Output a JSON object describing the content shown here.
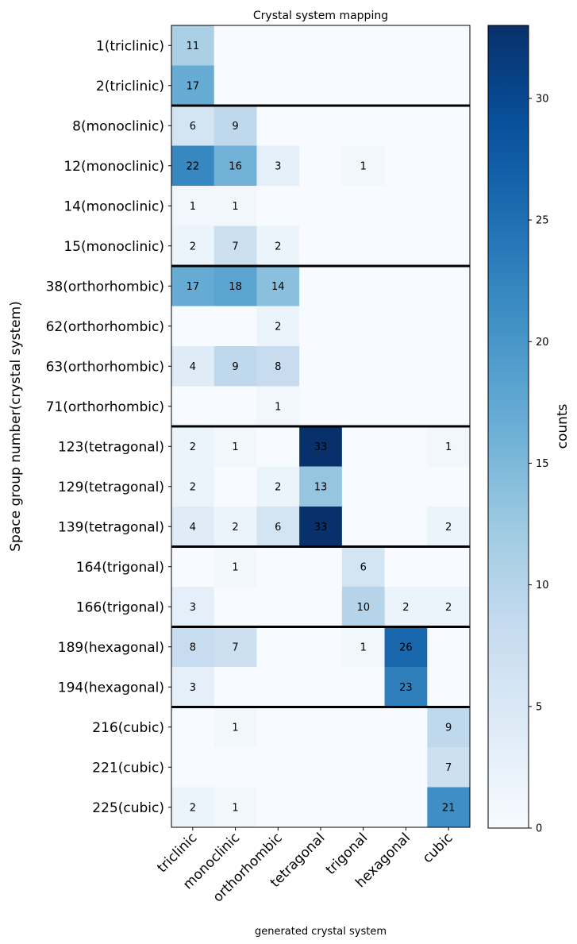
{
  "chart_data": {
    "type": "heatmap",
    "title": "Crystal system mapping",
    "xlabel": "generated crystal system",
    "ylabel": "Space group number(crystal system)",
    "colorbar_label": "counts",
    "colormap": "Blues",
    "vmin": 0,
    "vmax": 33,
    "colorbar_ticks": [
      0,
      5,
      10,
      15,
      20,
      25,
      30
    ],
    "colormap_stops": [
      "#f7fbff",
      "#deebf7",
      "#c6dbef",
      "#9ecae1",
      "#6baed6",
      "#4292c6",
      "#2171b5",
      "#08519c",
      "#08306b"
    ],
    "x_categories": [
      "triclinic",
      "monoclinic",
      "orthorhombic",
      "tetragonal",
      "trigonal",
      "hexagonal",
      "cubic"
    ],
    "y_categories": [
      "1(triclinic)",
      "2(triclinic)",
      "8(monoclinic)",
      "12(monoclinic)",
      "14(monoclinic)",
      "15(monoclinic)",
      "38(orthorhombic)",
      "62(orthorhombic)",
      "63(orthorhombic)",
      "71(orthorhombic)",
      "123(tetragonal)",
      "129(tetragonal)",
      "139(tetragonal)",
      "164(trigonal)",
      "166(trigonal)",
      "189(hexagonal)",
      "194(hexagonal)",
      "216(cubic)",
      "221(cubic)",
      "225(cubic)"
    ],
    "group_separators_after_row": [
      2,
      6,
      10,
      13,
      15,
      17
    ],
    "values": [
      [
        11,
        0,
        0,
        0,
        0,
        0,
        0
      ],
      [
        17,
        0,
        0,
        0,
        0,
        0,
        0
      ],
      [
        6,
        9,
        0,
        0,
        0,
        0,
        0
      ],
      [
        22,
        16,
        3,
        0,
        1,
        0,
        0
      ],
      [
        1,
        1,
        0,
        0,
        0,
        0,
        0
      ],
      [
        2,
        7,
        2,
        0,
        0,
        0,
        0
      ],
      [
        17,
        18,
        14,
        0,
        0,
        0,
        0
      ],
      [
        0,
        0,
        2,
        0,
        0,
        0,
        0
      ],
      [
        4,
        9,
        8,
        0,
        0,
        0,
        0
      ],
      [
        0,
        0,
        1,
        0,
        0,
        0,
        0
      ],
      [
        2,
        1,
        0,
        33,
        0,
        0,
        1
      ],
      [
        2,
        0,
        2,
        13,
        0,
        0,
        0
      ],
      [
        4,
        2,
        6,
        33,
        0,
        0,
        2
      ],
      [
        0,
        1,
        0,
        0,
        6,
        0,
        0
      ],
      [
        3,
        0,
        0,
        0,
        10,
        2,
        2
      ],
      [
        8,
        7,
        0,
        0,
        1,
        26,
        0
      ],
      [
        3,
        0,
        0,
        0,
        0,
        23,
        0
      ],
      [
        0,
        1,
        0,
        0,
        0,
        0,
        9
      ],
      [
        0,
        0,
        0,
        0,
        0,
        0,
        7
      ],
      [
        2,
        1,
        0,
        0,
        0,
        0,
        21
      ]
    ]
  }
}
